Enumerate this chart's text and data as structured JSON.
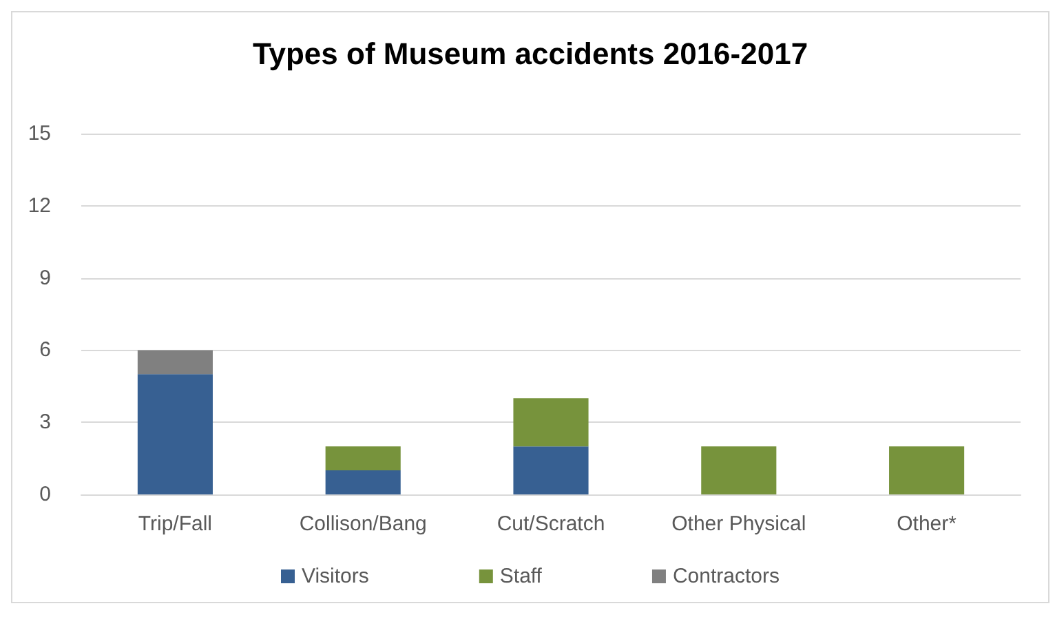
{
  "chart_data": {
    "type": "bar",
    "title": "Types of Museum accidents 2016-2017",
    "categories": [
      "Trip/Fall",
      "Collison/Bang",
      "Cut/Scratch",
      "Other Physical",
      "Other*"
    ],
    "stacked": true,
    "series": [
      {
        "name": "Visitors",
        "color": "#376092",
        "values": [
          5,
          1,
          2,
          0,
          0
        ]
      },
      {
        "name": "Staff",
        "color": "#77933c",
        "values": [
          0,
          1,
          2,
          2,
          2
        ]
      },
      {
        "name": "Contractors",
        "color": "#808080",
        "values": [
          1,
          0,
          0,
          0,
          0
        ]
      }
    ],
    "ylim": [
      0,
      15
    ],
    "yticks": [
      0,
      3,
      6,
      9,
      12,
      15
    ],
    "grid": "y",
    "legend": "bottom"
  }
}
